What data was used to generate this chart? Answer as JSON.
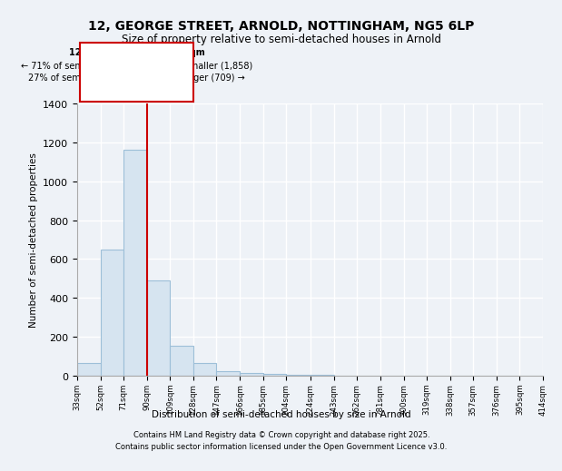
{
  "title_line1": "12, GEORGE STREET, ARNOLD, NOTTINGHAM, NG5 6LP",
  "title_line2": "Size of property relative to semi-detached houses in Arnold",
  "xlabel": "Distribution of semi-detached houses by size in Arnold",
  "ylabel": "Number of semi-detached properties",
  "bin_edges": [
    33,
    52,
    71,
    90,
    109,
    128,
    147,
    166,
    185,
    204,
    224,
    243,
    262,
    281,
    300,
    319,
    338,
    357,
    376,
    395,
    414
  ],
  "bar_heights": [
    65,
    650,
    1160,
    490,
    155,
    65,
    25,
    15,
    8,
    5,
    3,
    2,
    2,
    1,
    1,
    1,
    0,
    0,
    0,
    0
  ],
  "highlight_bin_index": 2,
  "property_line_x": 90,
  "annotation_title": "12 GEORGE STREET: 91sqm",
  "annotation_line2": "← 71% of semi-detached houses are smaller (1,858)",
  "annotation_line3": "27% of semi-detached houses are larger (709) →",
  "bar_color": "#d6e4f0",
  "bar_edge_color": "#9dbfd8",
  "highlight_edge_color": "#cc0000",
  "ylim": [
    0,
    1400
  ],
  "yticks": [
    0,
    200,
    400,
    600,
    800,
    1000,
    1200,
    1400
  ],
  "background_color": "#eef2f7",
  "grid_color": "#ffffff",
  "footer_line1": "Contains HM Land Registry data © Crown copyright and database right 2025.",
  "footer_line2": "Contains public sector information licensed under the Open Government Licence v3.0."
}
